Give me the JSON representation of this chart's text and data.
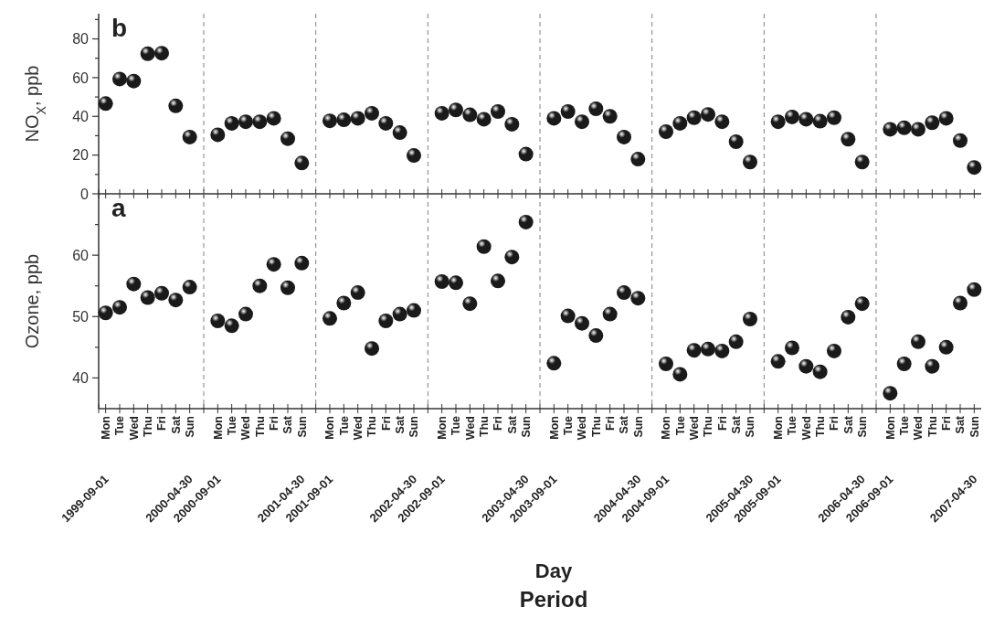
{
  "chart_data": [
    {
      "type": "scatter",
      "title": "b",
      "ylabel": "NO$_{X}$, ppb",
      "ylim": [
        0,
        93
      ],
      "yticks": [
        0,
        {
          "value": 10,
          "label": null
        },
        20,
        {
          "value": 30,
          "label": null
        },
        40,
        {
          "value": 50,
          "label": null
        },
        60,
        {
          "value": 70,
          "label": null
        },
        80,
        {
          "value": 90,
          "label": null
        }
      ],
      "categories": [
        null,
        null,
        null,
        null,
        null,
        null,
        null,
        null,
        null,
        null,
        null,
        null,
        null,
        null,
        null,
        null,
        null,
        null,
        null,
        null,
        null,
        null,
        null,
        null,
        null,
        null,
        null,
        null,
        null,
        null,
        null,
        null,
        null,
        null,
        null,
        null,
        null,
        null,
        null,
        null,
        null,
        null,
        null,
        null,
        null,
        null,
        null,
        null,
        null,
        null,
        null,
        null,
        null,
        null,
        null,
        null,
        null,
        null,
        null,
        null,
        null,
        null,
        null
      ],
      "grid": "x",
      "marker": "circle",
      "series": [
        {
          "color": "#1a1a1a",
          "values": [
            46.6,
            59.3,
            58.2,
            72.3,
            72.6,
            45.4,
            29.3,
            null,
            30.5,
            36.4,
            37.2,
            37.2,
            39.0,
            28.5,
            15.9,
            null,
            37.7,
            38.2,
            39.0,
            41.6,
            36.4,
            31.6,
            19.8,
            null,
            41.6,
            43.3,
            40.8,
            38.5,
            42.5,
            35.9,
            20.5,
            null,
            39.0,
            42.5,
            37.2,
            43.9,
            40.0,
            29.3,
            17.9,
            null,
            32.1,
            36.4,
            39.3,
            41.0,
            37.2,
            26.9,
            16.4,
            null,
            37.2,
            39.7,
            38.5,
            37.5,
            39.3,
            28.2,
            16.4,
            null,
            33.3,
            34.1,
            33.3,
            36.7,
            39.0,
            27.5,
            13.6
          ]
        }
      ]
    },
    {
      "type": "scatter",
      "title": "a",
      "ylabel": "Ozone, ppb",
      "xlabel": "Day",
      "ylim": [
        35,
        70
      ],
      "yticks": [
        40,
        {
          "value": 45,
          "label": null
        },
        50,
        {
          "value": 55,
          "label": null
        },
        60,
        {
          "value": 65,
          "label": null
        }
      ],
      "categories": [
        "Mon",
        "Tue",
        "Wed",
        "Thu",
        "Fri",
        "Sat",
        "Sun",
        null,
        "Mon",
        "Tue",
        "Wed",
        "Thu",
        "Fri",
        "Sat",
        "Sun",
        null,
        "Mon",
        "Tue",
        "Wed",
        "Thu",
        "Fri",
        "Sat",
        "Sun",
        null,
        "Mon",
        "Tue",
        "Wed",
        "Thu",
        "Fri",
        "Sat",
        "Sun",
        null,
        "Mon",
        "Tue",
        "Wed",
        "Thu",
        "Fri",
        "Sat",
        "Sun",
        null,
        "Mon",
        "Tue",
        "Wed",
        "Thu",
        "Fri",
        "Sat",
        "Sun",
        null,
        "Mon",
        "Tue",
        "Wed",
        "Thu",
        "Fri",
        "Sat",
        "Sun",
        null,
        "Mon",
        "Tue",
        "Wed",
        "Thu",
        "Fri",
        "Sat",
        "Sun"
      ],
      "grid": "x",
      "marker": "circle",
      "series": [
        {
          "color": "#1a1a1a",
          "values": [
            50.6,
            51.5,
            55.3,
            53.1,
            53.8,
            52.7,
            54.8,
            null,
            49.3,
            48.5,
            50.4,
            55.0,
            58.5,
            54.7,
            58.7,
            null,
            49.7,
            52.2,
            53.9,
            44.8,
            49.3,
            50.4,
            51.0,
            null,
            55.7,
            55.5,
            52.1,
            61.4,
            55.8,
            59.7,
            65.4,
            null,
            42.4,
            50.1,
            48.9,
            46.9,
            50.4,
            53.9,
            53.0,
            null,
            42.3,
            40.6,
            44.5,
            44.7,
            44.4,
            45.9,
            49.6,
            null,
            42.7,
            44.9,
            41.9,
            41.0,
            44.4,
            49.9,
            52.1,
            null,
            37.5,
            42.3,
            45.9,
            41.9,
            45.0,
            52.2,
            54.4
          ]
        }
      ],
      "annotations": [
        "1999-09-01",
        "2000-04-30",
        "2000-09-01",
        "2001-04-30",
        "2001-09-01",
        "2002-04-30",
        "2002-09-01",
        "2003-04-30",
        "2003-09-01",
        "2004-04-30",
        "2004-09-01",
        "2005-04-30",
        "2005-09-01",
        "2006-04-30",
        "2006-09-01",
        "2007-04-30",
        "Period"
      ]
    }
  ]
}
